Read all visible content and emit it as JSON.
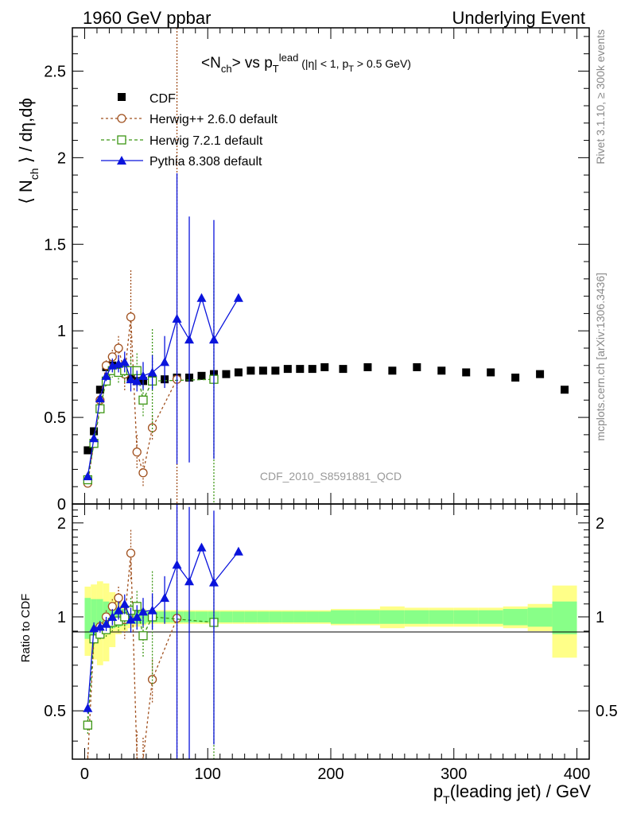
{
  "header": {
    "left": "1960 GeV ppbar",
    "right": "Underlying Event"
  },
  "side_labels": {
    "top": "Rivet 3.1.10, ≥ 300k events",
    "bottom": "mcplots.cern.ch [arXiv:1306.3436]"
  },
  "watermark": "CDF_2010_S8591881_QCD",
  "legend": {
    "cdf": "CDF",
    "herwigpp": "Herwig++ 2.6.0 default",
    "herwig7": "Herwig 7.2.1 default",
    "pythia": "Pythia 8.308 default"
  },
  "colors": {
    "cdf": "#000000",
    "herwigpp": "#a0501e",
    "herwig7": "#3c9614",
    "pythia": "#0a14dc",
    "band_inner": "#88ff88",
    "band_outer": "#ffff88"
  },
  "chart_data": [
    {
      "type": "scatter",
      "title": "<Nch> vs pT lead (|η| < 1, pT > 0.5 GeV)",
      "ylabel": "⟨ N_ch ⟩ / dη,dϕ",
      "xlim": [
        -10,
        410
      ],
      "ylim": [
        0,
        2.75
      ],
      "y_ticks": [
        0,
        0.5,
        1,
        1.5,
        2,
        2.5
      ],
      "y_tick_labels": [
        "0",
        "0.5",
        "1",
        "1.5",
        "2",
        "2.5"
      ],
      "series": [
        {
          "name": "CDF",
          "x": [
            2.5,
            7.5,
            12.5,
            17.5,
            22.5,
            27.5,
            32.5,
            37.5,
            42.5,
            47.5,
            55,
            65,
            75,
            85,
            95,
            105,
            115,
            125,
            135,
            145,
            155,
            165,
            175,
            185,
            195,
            210,
            230,
            250,
            270,
            290,
            310,
            330,
            350,
            370,
            390
          ],
          "y": [
            0.31,
            0.42,
            0.66,
            0.79,
            0.8,
            0.78,
            0.76,
            0.73,
            0.71,
            0.71,
            0.72,
            0.72,
            0.73,
            0.73,
            0.74,
            0.75,
            0.75,
            0.76,
            0.77,
            0.77,
            0.77,
            0.78,
            0.78,
            0.78,
            0.79,
            0.78,
            0.79,
            0.77,
            0.79,
            0.77,
            0.76,
            0.76,
            0.73,
            0.75,
            0.66
          ]
        },
        {
          "name": "Herwig++ 2.6.0 default",
          "x": [
            2.5,
            7.5,
            12.5,
            17.5,
            22.5,
            27.5,
            32.5,
            37.5,
            42.5,
            47.5,
            55,
            75
          ],
          "y": [
            0.12,
            0.35,
            0.6,
            0.8,
            0.85,
            0.9,
            0.75,
            1.08,
            0.3,
            0.18,
            0.44,
            0.72
          ],
          "err": [
            0.01,
            0.02,
            0.02,
            0.03,
            0.04,
            0.07,
            0.1,
            0.27,
            0.1,
            0.08,
            0.07,
            2.1
          ]
        },
        {
          "name": "Herwig 7.2.1 default",
          "x": [
            2.5,
            7.5,
            12.5,
            17.5,
            22.5,
            27.5,
            32.5,
            37.5,
            42.5,
            47.5,
            55,
            105
          ],
          "y": [
            0.14,
            0.35,
            0.55,
            0.71,
            0.77,
            0.76,
            0.77,
            0.77,
            0.77,
            0.6,
            0.71,
            0.72
          ],
          "err": [
            0.01,
            0.02,
            0.02,
            0.03,
            0.04,
            0.06,
            0.07,
            0.08,
            0.1,
            0.1,
            0.3,
            0.73
          ]
        },
        {
          "name": "Pythia 8.308 default",
          "x": [
            2.5,
            7.5,
            12.5,
            17.5,
            22.5,
            27.5,
            32.5,
            37.5,
            42.5,
            47.5,
            55,
            65,
            75,
            85,
            95,
            105,
            125
          ],
          "y": [
            0.16,
            0.38,
            0.61,
            0.74,
            0.8,
            0.81,
            0.82,
            0.72,
            0.71,
            0.74,
            0.76,
            0.82,
            1.07,
            0.95,
            1.19,
            0.95,
            1.19
          ],
          "err": [
            0.01,
            0.02,
            0.02,
            0.03,
            0.04,
            0.05,
            0.06,
            0.07,
            0.06,
            0.08,
            0.1,
            0.15,
            0.84,
            0.71,
            0,
            0.69,
            0
          ]
        }
      ]
    },
    {
      "type": "scatter",
      "title": "",
      "ylabel": "Ratio to CDF",
      "xlabel": "pT(leading jet) / GeV",
      "xlim": [
        -10,
        410
      ],
      "ylim": [
        0.35,
        2.3
      ],
      "y_ticks": [
        0.5,
        1,
        2
      ],
      "y_tick_labels": [
        "0.5",
        "1",
        "2"
      ],
      "x_ticks": [
        0,
        100,
        200,
        300,
        400
      ],
      "x_tick_labels": [
        "0",
        "100",
        "200",
        "300",
        "400"
      ],
      "bands": {
        "x_edges": [
          0,
          5,
          10,
          15,
          20,
          25,
          30,
          35,
          40,
          45,
          50,
          60,
          70,
          80,
          90,
          100,
          110,
          120,
          130,
          140,
          150,
          160,
          170,
          180,
          190,
          200,
          220,
          240,
          260,
          280,
          300,
          320,
          340,
          360,
          380,
          400
        ],
        "inner": [
          0.15,
          0.14,
          0.14,
          0.12,
          0.08,
          0.07,
          0.06,
          0.05,
          0.05,
          0.05,
          0.04,
          0.04,
          0.04,
          0.04,
          0.04,
          0.04,
          0.04,
          0.04,
          0.04,
          0.04,
          0.04,
          0.04,
          0.04,
          0.04,
          0.04,
          0.05,
          0.05,
          0.05,
          0.05,
          0.05,
          0.05,
          0.05,
          0.06,
          0.07,
          0.12
        ],
        "outer": [
          0.25,
          0.27,
          0.3,
          0.28,
          0.2,
          0.12,
          0.1,
          0.08,
          0.07,
          0.06,
          0.05,
          0.05,
          0.05,
          0.05,
          0.05,
          0.05,
          0.05,
          0.05,
          0.05,
          0.05,
          0.05,
          0.05,
          0.05,
          0.05,
          0.05,
          0.06,
          0.06,
          0.08,
          0.07,
          0.07,
          0.07,
          0.07,
          0.08,
          0.1,
          0.26
        ]
      },
      "series": [
        {
          "name": "Herwig++ 2.6.0 default",
          "x": [
            2.5,
            7.5,
            12.5,
            17.5,
            22.5,
            27.5,
            32.5,
            37.5,
            42.5,
            47.5,
            55,
            75
          ],
          "y": [
            0.34,
            0.85,
            0.93,
            1.0,
            1.08,
            1.15,
            0.98,
            1.6,
            0.3,
            0.3,
            0.63,
            0.99
          ],
          "err": [
            0.02,
            0.03,
            0.04,
            0.05,
            0.06,
            0.1,
            0.13,
            0.3,
            0.13,
            0.11,
            0.1,
            2.0
          ]
        },
        {
          "name": "Herwig 7.2.1 default",
          "x": [
            2.5,
            7.5,
            12.5,
            17.5,
            22.5,
            27.5,
            32.5,
            37.5,
            42.5,
            47.5,
            55,
            105
          ],
          "y": [
            0.45,
            0.85,
            0.88,
            0.91,
            0.96,
            0.97,
            1.0,
            1.05,
            1.08,
            0.87,
            1.0,
            0.96
          ],
          "err": [
            0.03,
            0.04,
            0.04,
            0.05,
            0.06,
            0.08,
            0.09,
            0.1,
            0.13,
            0.13,
            0.4,
            1.0
          ]
        },
        {
          "name": "Pythia 8.308 default",
          "x": [
            2.5,
            7.5,
            12.5,
            17.5,
            22.5,
            27.5,
            32.5,
            37.5,
            42.5,
            47.5,
            55,
            65,
            75,
            85,
            95,
            105,
            125
          ],
          "y": [
            0.51,
            0.92,
            0.93,
            0.95,
            1.0,
            1.05,
            1.1,
            0.98,
            1.0,
            1.04,
            1.05,
            1.15,
            1.47,
            1.3,
            1.67,
            1.29,
            1.62
          ],
          "err": [
            0.02,
            0.04,
            0.04,
            0.05,
            0.06,
            0.07,
            0.08,
            0.09,
            0.09,
            0.11,
            0.14,
            0.2,
            1.15,
            0.95,
            0,
            0.9,
            0
          ]
        }
      ]
    }
  ]
}
